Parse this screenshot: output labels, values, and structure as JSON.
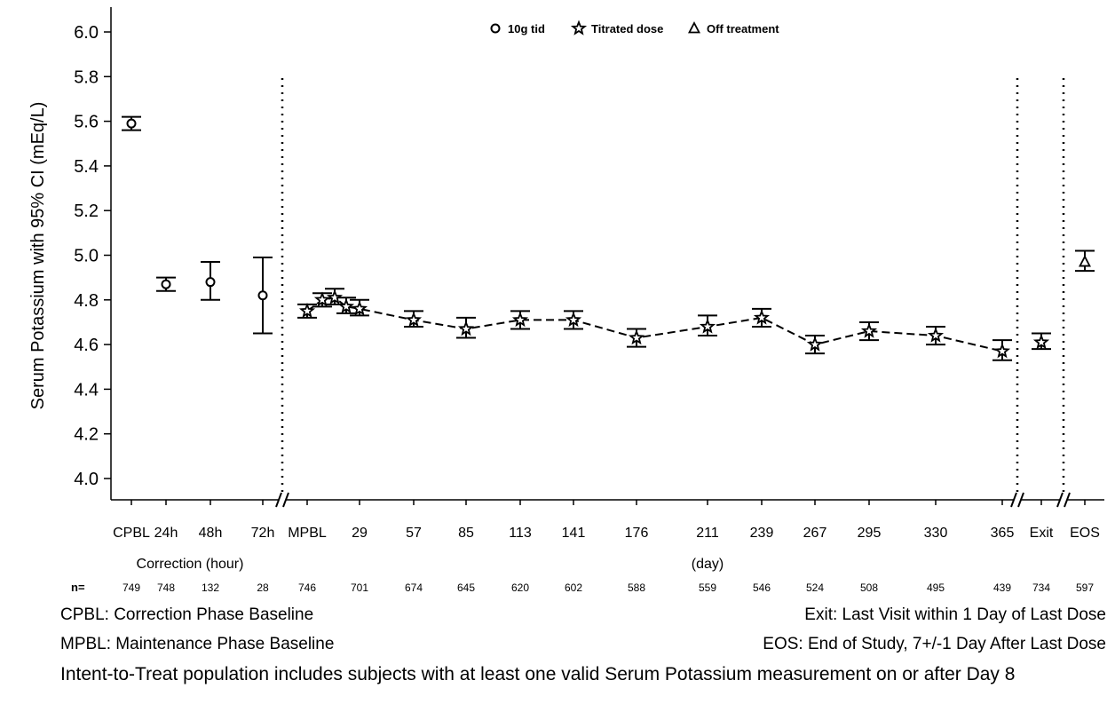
{
  "chart_data": {
    "type": "scatter",
    "ylabel": "Serum Potassium with 95% CI (mEq/L)",
    "ylim": [
      3.9,
      6.1
    ],
    "yticks": [
      "4.0",
      "4.2",
      "4.4",
      "4.6",
      "4.8",
      "5.0",
      "5.2",
      "5.4",
      "5.6",
      "5.8",
      "6.0"
    ],
    "grid": false,
    "legend_position": "top-center",
    "legend": [
      {
        "marker": "circle",
        "label": "10g tid"
      },
      {
        "marker": "star",
        "label": "Titrated dose"
      },
      {
        "marker": "triangle",
        "label": "Off treatment"
      }
    ],
    "section_labels": {
      "correction": "Correction (hour)",
      "maintenance": "(day)"
    },
    "n_label": "n=",
    "points": [
      {
        "tick": "CPBL",
        "n": "749",
        "series": "10g tid",
        "y": 5.59,
        "lo": 5.56,
        "hi": 5.62
      },
      {
        "tick": "24h",
        "n": "748",
        "series": "10g tid",
        "y": 4.87,
        "lo": 4.84,
        "hi": 4.9
      },
      {
        "tick": "48h",
        "n": "132",
        "series": "10g tid",
        "y": 4.88,
        "lo": 4.8,
        "hi": 4.97
      },
      {
        "tick": "72h",
        "n": "28",
        "series": "10g tid",
        "y": 4.82,
        "lo": 4.65,
        "hi": 4.99
      },
      {
        "tick": "MPBL",
        "n": "746",
        "series": "Titrated dose",
        "y": 4.75,
        "lo": 4.72,
        "hi": 4.78
      },
      {
        "tick": "",
        "n": "",
        "series": "Titrated dose",
        "y": 4.8,
        "lo": 4.77,
        "hi": 4.83
      },
      {
        "tick": "",
        "n": "",
        "series": "Titrated dose",
        "y": 4.81,
        "lo": 4.78,
        "hi": 4.85
      },
      {
        "tick": "",
        "n": "",
        "series": "Titrated dose",
        "y": 4.77,
        "lo": 4.74,
        "hi": 4.81
      },
      {
        "tick": "29",
        "n": "701",
        "series": "Titrated dose",
        "y": 4.76,
        "lo": 4.73,
        "hi": 4.8
      },
      {
        "tick": "57",
        "n": "674",
        "series": "Titrated dose",
        "y": 4.71,
        "lo": 4.68,
        "hi": 4.75
      },
      {
        "tick": "85",
        "n": "645",
        "series": "Titrated dose",
        "y": 4.67,
        "lo": 4.63,
        "hi": 4.72
      },
      {
        "tick": "113",
        "n": "620",
        "series": "Titrated dose",
        "y": 4.71,
        "lo": 4.67,
        "hi": 4.75
      },
      {
        "tick": "141",
        "n": "602",
        "series": "Titrated dose",
        "y": 4.71,
        "lo": 4.67,
        "hi": 4.75
      },
      {
        "tick": "176",
        "n": "588",
        "series": "Titrated dose",
        "y": 4.63,
        "lo": 4.59,
        "hi": 4.67
      },
      {
        "tick": "211",
        "n": "559",
        "series": "Titrated dose",
        "y": 4.68,
        "lo": 4.64,
        "hi": 4.73
      },
      {
        "tick": "239",
        "n": "546",
        "series": "Titrated dose",
        "y": 4.72,
        "lo": 4.68,
        "hi": 4.76
      },
      {
        "tick": "267",
        "n": "524",
        "series": "Titrated dose",
        "y": 4.6,
        "lo": 4.56,
        "hi": 4.64
      },
      {
        "tick": "295",
        "n": "508",
        "series": "Titrated dose",
        "y": 4.66,
        "lo": 4.62,
        "hi": 4.7
      },
      {
        "tick": "330",
        "n": "495",
        "series": "Titrated dose",
        "y": 4.64,
        "lo": 4.6,
        "hi": 4.68
      },
      {
        "tick": "365",
        "n": "439",
        "series": "Titrated dose",
        "y": 4.57,
        "lo": 4.53,
        "hi": 4.62
      },
      {
        "tick": "Exit",
        "n": "734",
        "series": "Titrated dose",
        "y": 4.61,
        "lo": 4.58,
        "hi": 4.65
      },
      {
        "tick": "EOS",
        "n": "597",
        "series": "Off treatment",
        "y": 4.97,
        "lo": 4.93,
        "hi": 5.02
      }
    ]
  },
  "footnotes": {
    "cpbl": "CPBL: Correction Phase Baseline",
    "exit": "Exit: Last Visit within 1 Day of Last Dose",
    "mpbl": "MPBL: Maintenance Phase Baseline",
    "eos": "EOS: End of Study, 7+/-1 Day After Last Dose",
    "itt": "Intent-to-Treat population includes subjects with at least one valid Serum Potassium measurement on or after Day 8"
  }
}
